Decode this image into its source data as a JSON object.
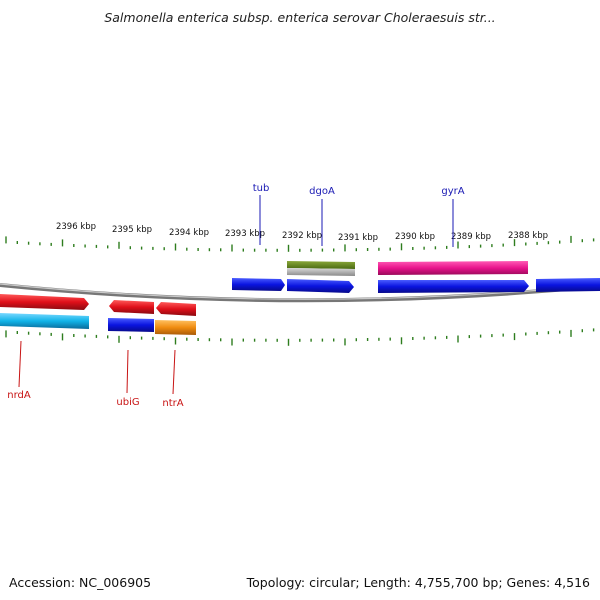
{
  "title": "Salmonella enterica subsp. enterica serovar Choleraesuis str...",
  "accession_line": "Accession: NC_006905",
  "summary_line": "Topology: circular; Length: 4,755,700 bp; Genes: 4,516",
  "scale_labels": [
    "2396 kbp",
    "2395 kbp",
    "2394 kbp",
    "2393 kbp",
    "2392 kbp",
    "2391 kbp",
    "2390 kbp",
    "2389 kbp",
    "2388 kbp"
  ],
  "gene_labels": {
    "tub": "tub",
    "dgoA": "dgoA",
    "gyrA": "gyrA",
    "nrdA": "nrdA",
    "ubiG": "ubiG",
    "ntrA": "ntrA"
  },
  "colors": {
    "backbone": "#8a8a8a",
    "tick": "#2e7d1e",
    "cds_blue": "#0a14e0",
    "red": "#e0101a",
    "cyan": "#10b4e8",
    "orange": "#f08c10",
    "olive": "#6a8a22",
    "magenta": "#e8148c",
    "upper_label": "#1a1ab4",
    "lower_label": "#c81414"
  }
}
